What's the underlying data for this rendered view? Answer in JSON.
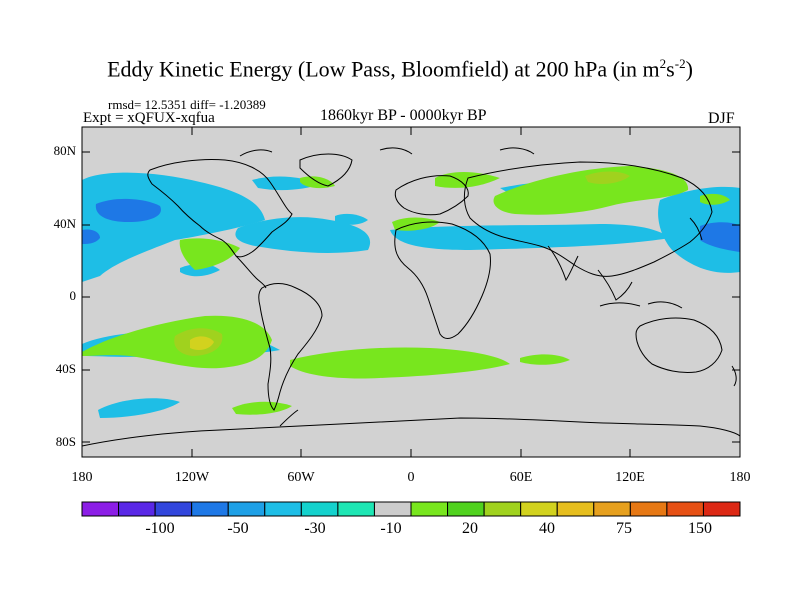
{
  "title": {
    "main": "Eddy Kinetic Energy (Low Pass, Bloomfield) at 200 hPa (in m",
    "sup1": "2",
    "mid": "s",
    "sup2": "-2",
    "end": ")"
  },
  "stats": "rmsd= 12.5351 diff= -1.20389",
  "expt": "Expt = xQFUX-xqfua",
  "period": "1860kyr BP - 0000kyr BP",
  "season": "DJF",
  "y_axis_labels": [
    "80N",
    "40N",
    "0",
    "40S",
    "80S"
  ],
  "x_axis_labels": [
    "180",
    "120W",
    "60W",
    "0",
    "60E",
    "120E",
    "180"
  ],
  "colorbar": {
    "colors": [
      "#8c1ee6",
      "#5a28e6",
      "#3246dc",
      "#1e78e6",
      "#1ea0e6",
      "#1ebee6",
      "#14d2cd",
      "#1ee6b4",
      "#cccccc",
      "#78e61e",
      "#50d21e",
      "#a0d21e",
      "#d2d21e",
      "#e6be1e",
      "#e6a01e",
      "#e67814",
      "#e65014",
      "#dc2814"
    ],
    "labels": [
      "-100",
      "-50",
      "-30",
      "-10",
      "20",
      "40",
      "75",
      "150"
    ]
  },
  "map": {
    "background_color": "#d2d2d2",
    "coast_color": "#000000"
  }
}
